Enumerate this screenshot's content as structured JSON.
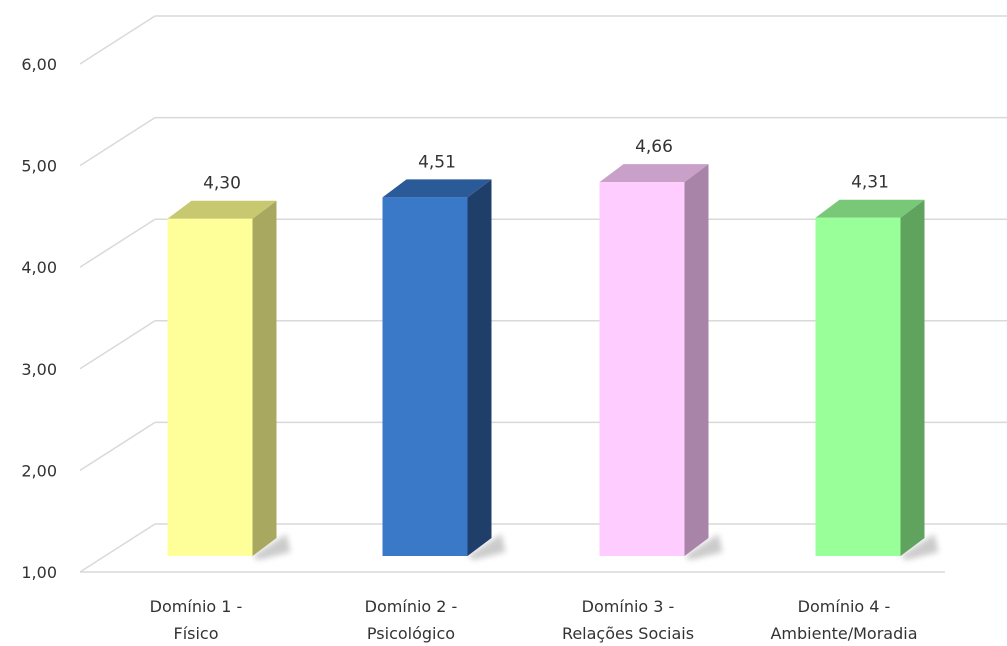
{
  "chart_data": {
    "type": "bar",
    "title": "",
    "xlabel": "",
    "ylabel": "",
    "ylim": [
      1,
      6
    ],
    "y_ticks": [
      "1,00",
      "2,00",
      "3,00",
      "4,00",
      "5,00",
      "6,00"
    ],
    "grid": true,
    "three_d": true,
    "categories": [
      {
        "line1": "Domínio 1 -",
        "line2": "Físico"
      },
      {
        "line1": "Domínio 2 -",
        "line2": "Psicológico"
      },
      {
        "line1": "Domínio 3 -",
        "line2": "Relações Sociais"
      },
      {
        "line1": "Domínio 4 -",
        "line2": "Ambiente/Moradia"
      }
    ],
    "values": [
      4.3,
      4.51,
      4.66,
      4.31
    ],
    "value_labels": [
      "4,30",
      "4,51",
      "4,66",
      "4,31"
    ],
    "colors": [
      {
        "front": "#ffff99",
        "side": "#a8a860",
        "top": "#c8c870"
      },
      {
        "front": "#3a78c8",
        "side": "#1f3f6a",
        "top": "#2a5a98"
      },
      {
        "front": "#ffccff",
        "side": "#a884a8",
        "top": "#c8a0c8"
      },
      {
        "front": "#99ff99",
        "side": "#5fa35f",
        "top": "#78c878"
      }
    ]
  }
}
